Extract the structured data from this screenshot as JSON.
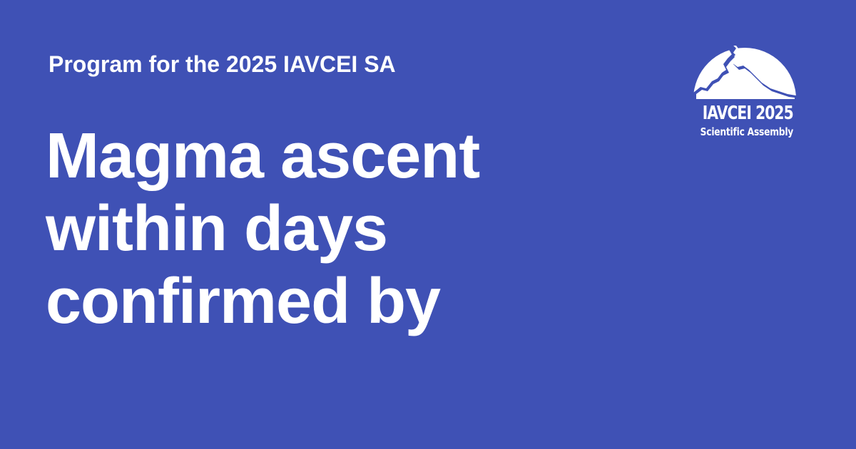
{
  "card": {
    "background_color": "#3f51b5",
    "text_color": "#ffffff",
    "subtitle": "Program for the 2025 IAVCEI SA",
    "headline_lines": [
      "Magma ascent",
      "within days",
      "confirmed by"
    ]
  },
  "logo": {
    "icon": "volcano-dome-icon",
    "title": "IAVCEI 2025",
    "subtitle": "Scientific Assembly"
  }
}
